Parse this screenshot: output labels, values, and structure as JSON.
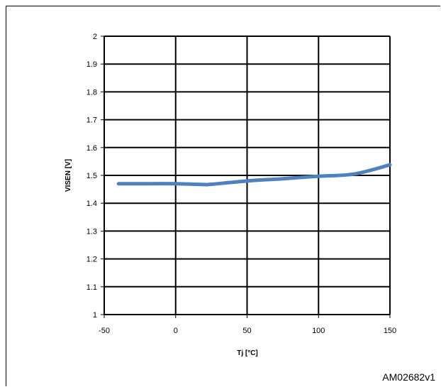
{
  "figure_code": "AM02682v1",
  "colors": {
    "line": "#4f81bd",
    "grid": "#000000"
  },
  "chart_data": {
    "type": "line",
    "title": "",
    "xlabel": "Tj [°C]",
    "ylabel": "VISEN [V]",
    "xlim": [
      -50,
      150
    ],
    "ylim": [
      1,
      2
    ],
    "xticks": [
      -50,
      0,
      50,
      100,
      150
    ],
    "yticks": [
      1,
      1.1,
      1.2,
      1.3,
      1.4,
      1.5,
      1.6,
      1.7,
      1.8,
      1.9,
      2
    ],
    "ytick_labels": [
      "1",
      "1.1",
      "1.2",
      "1.3",
      "1.4",
      "1.5",
      "1.6",
      "1.7",
      "1.8",
      "1.9",
      "2"
    ],
    "grid": true,
    "series": [
      {
        "x": [
          -40,
          -25,
          0,
          20,
          25,
          50,
          75,
          100,
          125,
          150
        ],
        "y": [
          1.47,
          1.47,
          1.47,
          1.467,
          1.468,
          1.48,
          1.488,
          1.497,
          1.505,
          1.538
        ]
      }
    ]
  }
}
